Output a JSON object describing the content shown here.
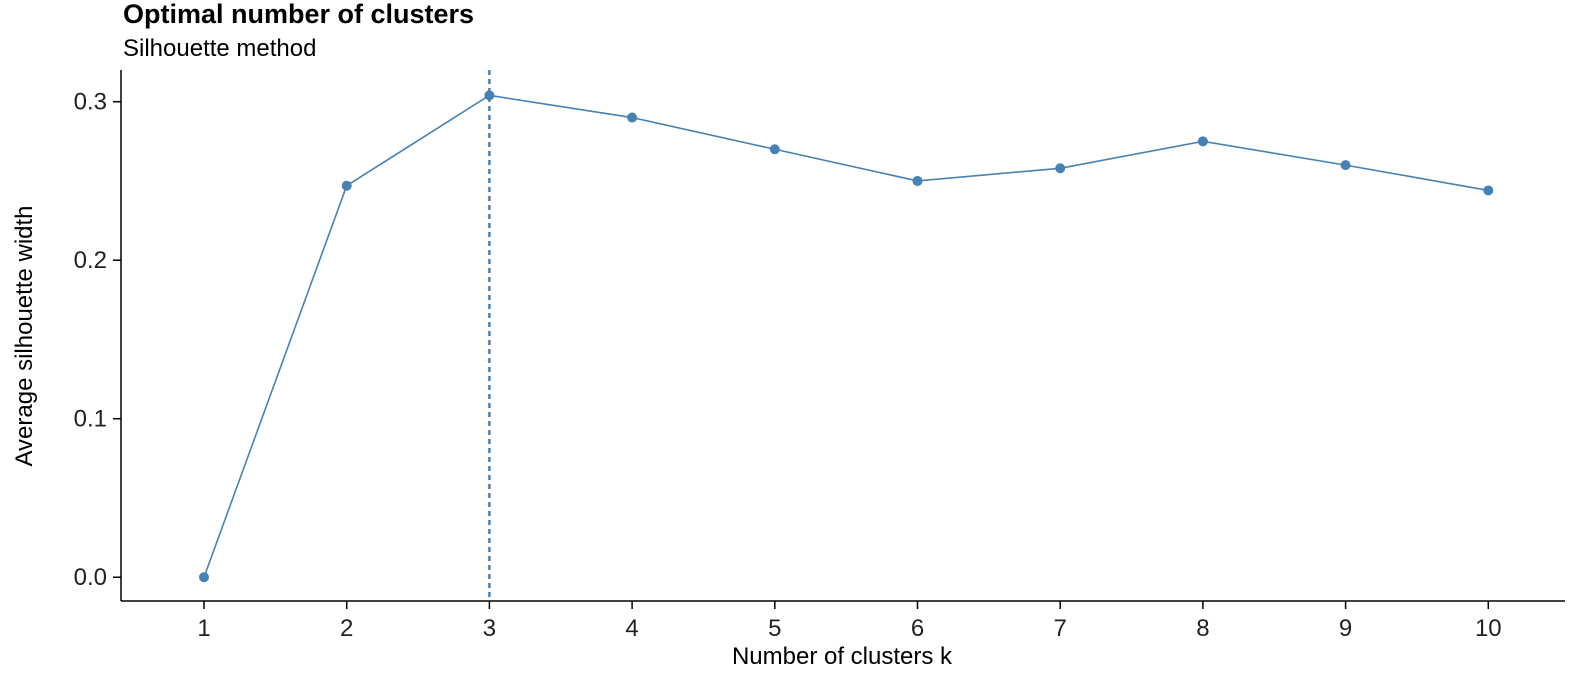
{
  "chart_data": {
    "type": "line",
    "title": "Optimal number of clusters",
    "subtitle": "Silhouette method",
    "xlabel": "Number of clusters k",
    "ylabel": "Average silhouette width",
    "categories": [
      "1",
      "2",
      "3",
      "4",
      "5",
      "6",
      "7",
      "8",
      "9",
      "10"
    ],
    "series": [
      {
        "values": [
          0.0,
          0.247,
          0.304,
          0.29,
          0.27,
          0.25,
          0.258,
          0.275,
          0.26,
          0.244
        ]
      }
    ],
    "ylim": [
      -0.015,
      0.32
    ],
    "yticks": [
      0.0,
      0.1,
      0.2,
      0.3
    ],
    "ytick_labels": [
      "0.0",
      "0.1",
      "0.2",
      "0.3"
    ],
    "optimal_k": "3",
    "grid": false,
    "legend": "none",
    "colors": {
      "line": "#4682B4"
    }
  }
}
